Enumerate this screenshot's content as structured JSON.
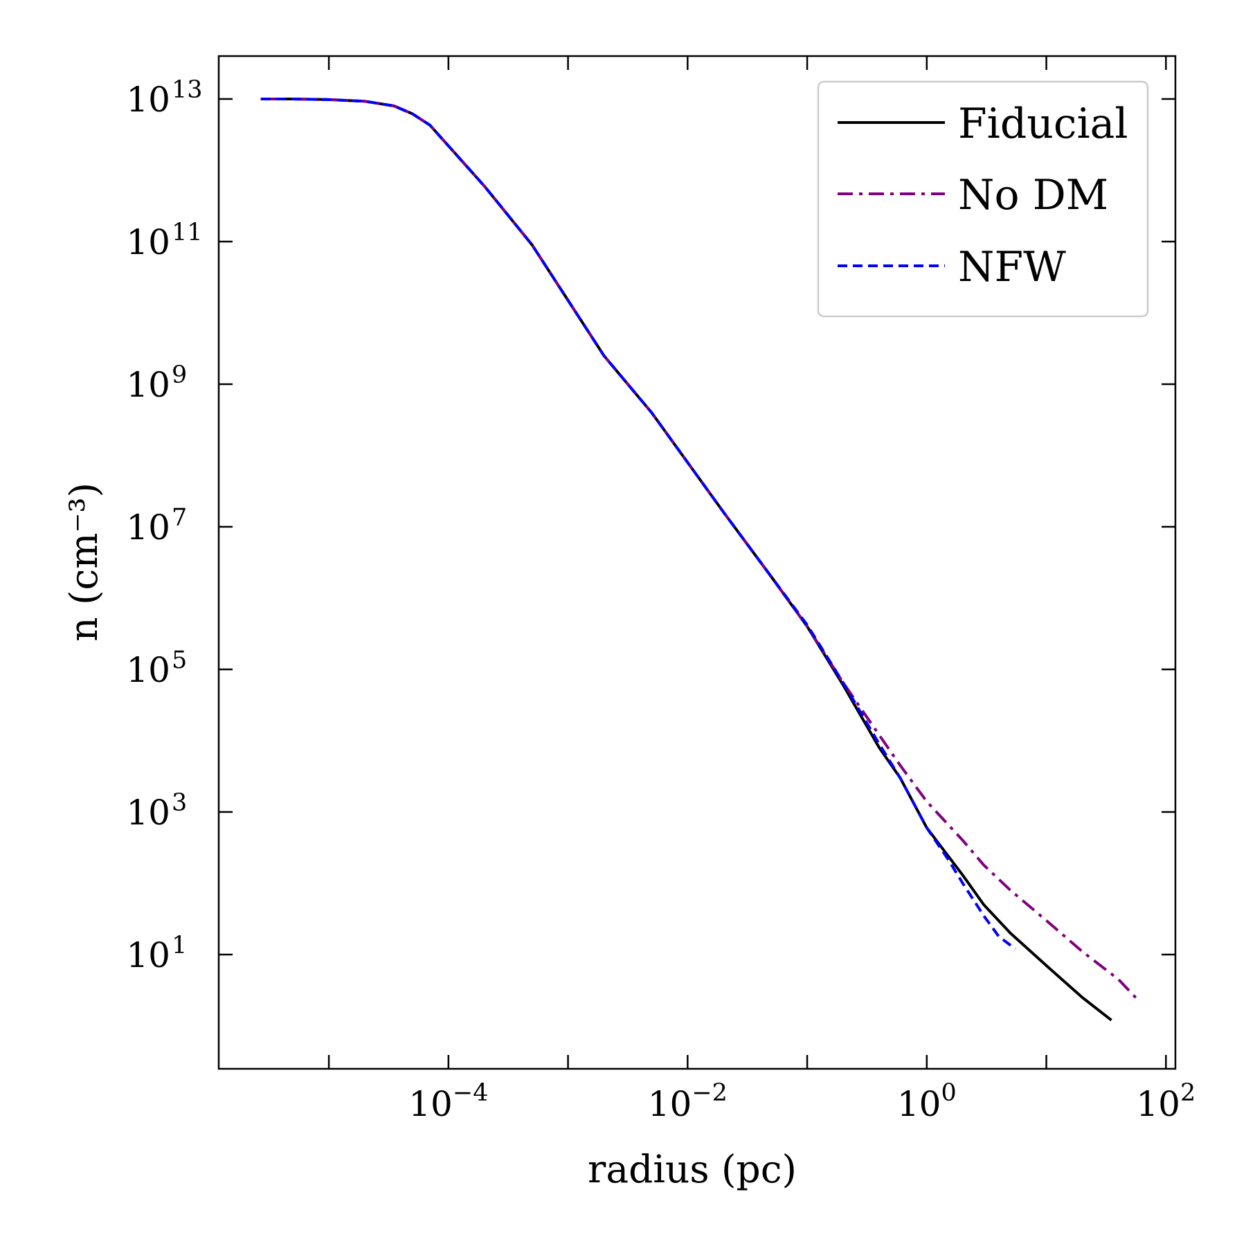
{
  "chart_data": {
    "type": "line",
    "title": "",
    "xlabel": "radius (pc)",
    "ylabel": "n (cm⁻³)",
    "xscale": "log",
    "yscale": "log",
    "xlim": [
      1.2e-06,
      120
    ],
    "ylim": [
      0.25,
      40000000000000.0
    ],
    "grid": false,
    "legend_position": "top-right",
    "x_ticks": [
      {
        "base": "10",
        "exp": "−4",
        "value": 0.0001
      },
      {
        "base": "10",
        "exp": "−2",
        "value": 0.01
      },
      {
        "base": "10",
        "exp": "0",
        "value": 1
      },
      {
        "base": "10",
        "exp": "2",
        "value": 100
      }
    ],
    "y_ticks": [
      {
        "base": "10",
        "exp": "13",
        "value": 10000000000000.0
      },
      {
        "base": "10",
        "exp": "11",
        "value": 100000000000.0
      },
      {
        "base": "10",
        "exp": "9",
        "value": 1000000000.0
      },
      {
        "base": "10",
        "exp": "7",
        "value": 10000000.0
      },
      {
        "base": "10",
        "exp": "5",
        "value": 100000.0
      },
      {
        "base": "10",
        "exp": "3",
        "value": 1000.0
      },
      {
        "base": "10",
        "exp": "1",
        "value": 10
      }
    ],
    "series": [
      {
        "name": "Fiducial",
        "color": "#000000",
        "dash": "solid",
        "x": [
          2.7e-06,
          5e-06,
          1e-05,
          2e-05,
          3.5e-05,
          5e-05,
          7e-05,
          0.0001,
          0.0002,
          0.0005,
          0.001,
          0.002,
          0.005,
          0.01,
          0.02,
          0.05,
          0.1,
          0.2,
          0.4,
          0.6,
          1.0,
          2.0,
          3.0,
          5.0,
          10,
          20,
          35
        ],
        "y": [
          10000000000000.0,
          10000000000000.0,
          9800000000000.0,
          9300000000000.0,
          8000000000000.0,
          6200000000000.0,
          4300000000000.0,
          2200000000000.0,
          600000000000.0,
          90000000000.0,
          15000000000.0,
          2500000000.0,
          400000000.0,
          80000000.0,
          16000000.0,
          2000000.0,
          400000.0,
          60000.0,
          8000.0,
          3000.0,
          600.0,
          130.0,
          50,
          20,
          7,
          2.5,
          1.2
        ]
      },
      {
        "name": "No DM",
        "color": "#800080",
        "dash": "dash-dot",
        "x": [
          2.7e-06,
          5e-06,
          1e-05,
          2e-05,
          3.5e-05,
          5e-05,
          7e-05,
          0.0001,
          0.0002,
          0.0005,
          0.001,
          0.002,
          0.005,
          0.01,
          0.02,
          0.05,
          0.1,
          0.2,
          0.4,
          0.6,
          1.0,
          2.0,
          3.0,
          5.0,
          10,
          20,
          40,
          60
        ],
        "y": [
          10000000000000.0,
          10000000000000.0,
          9800000000000.0,
          9300000000000.0,
          8000000000000.0,
          6200000000000.0,
          4300000000000.0,
          2200000000000.0,
          600000000000.0,
          90000000000.0,
          15000000000.0,
          2500000000.0,
          400000000.0,
          80000000.0,
          16000000.0,
          2000000.0,
          400000.0,
          65000.0,
          12000.0,
          4500.0,
          1400.0,
          400.0,
          180.0,
          80,
          30,
          11,
          4.5,
          2.2
        ]
      },
      {
        "name": "NFW",
        "color": "#0000ff",
        "dash": "dashed",
        "x": [
          2.7e-06,
          5e-06,
          1e-05,
          2e-05,
          3.5e-05,
          5e-05,
          7e-05,
          0.0001,
          0.0002,
          0.0005,
          0.001,
          0.002,
          0.005,
          0.01,
          0.02,
          0.05,
          0.1,
          0.2,
          0.4,
          0.6,
          1.0,
          1.5,
          2.0,
          3.0,
          4.0,
          5.5
        ],
        "y": [
          10000000000000.0,
          10000000000000.0,
          9800000000000.0,
          9300000000000.0,
          8000000000000.0,
          6200000000000.0,
          4300000000000.0,
          2200000000000.0,
          600000000000.0,
          90000000000.0,
          15000000000.0,
          2500000000.0,
          400000000.0,
          80000000.0,
          16000000.0,
          2000000.0,
          420000.0,
          65000.0,
          9000.0,
          3000.0,
          600.0,
          220.0,
          100.0,
          35,
          18,
          12
        ]
      }
    ]
  }
}
